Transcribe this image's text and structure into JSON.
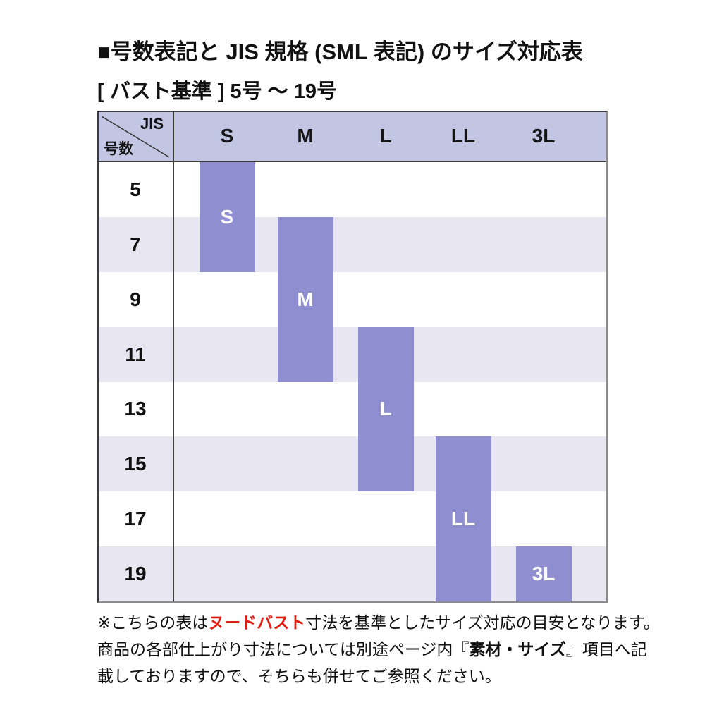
{
  "title": "■号数表記と JIS 規格 (SML 表記) のサイズ対応表",
  "subtitle": "[ バスト基準 ] 5号 〜 19号",
  "table": {
    "corner": {
      "jis": "JIS",
      "gosu": "号数"
    },
    "columns": [
      "S",
      "M",
      "L",
      "LL",
      "3L"
    ],
    "rows": [
      "5",
      "7",
      "9",
      "11",
      "13",
      "15",
      "17",
      "19"
    ],
    "bars": [
      {
        "size": "S",
        "rows_covered": [
          "5",
          "7"
        ]
      },
      {
        "size": "M",
        "rows_covered": [
          "7",
          "9",
          "11"
        ]
      },
      {
        "size": "L",
        "rows_covered": [
          "11",
          "13",
          "15"
        ]
      },
      {
        "size": "LL",
        "rows_covered": [
          "15",
          "17",
          "19"
        ]
      },
      {
        "size": "3L",
        "rows_covered": [
          "19"
        ]
      }
    ],
    "colors": {
      "header_bg": "#c3c6e3",
      "stripe_bg": "#e8e6f1",
      "bar": "#8f8ed1",
      "bar_text": "#ffffff",
      "border_dark": "#3b3b3b",
      "border_light": "#8b8b8b"
    }
  },
  "footnote": {
    "highlight_color": "#e01f14",
    "lines": [
      {
        "segments": [
          {
            "text": "※こちらの表は",
            "style": "normal"
          },
          {
            "text": "ヌードバスト",
            "style": "red-bold"
          },
          {
            "text": "寸法を基準としたサイズ対応の目安となります。",
            "style": "normal"
          }
        ]
      },
      {
        "segments": [
          {
            "text": "商品の各部仕上がり寸法については別途ページ内『",
            "style": "normal"
          },
          {
            "text": "素材・サイズ",
            "style": "bold"
          },
          {
            "text": "』項目へ記",
            "style": "normal"
          }
        ]
      },
      {
        "segments": [
          {
            "text": "載しておりますので、そちらも併せてご参照ください。",
            "style": "normal"
          }
        ]
      }
    ]
  },
  "chart_data": {
    "type": "table",
    "title": "号数表記と JIS 規格 (SML 表記) のサイズ対応表",
    "subtitle": "バスト基準 5号〜19号",
    "rows_axis_label": "号数",
    "columns_axis_label": "JIS",
    "categories": [
      "5",
      "7",
      "9",
      "11",
      "13",
      "15",
      "17",
      "19"
    ],
    "columns": [
      "S",
      "M",
      "L",
      "LL",
      "3L"
    ],
    "series": [
      {
        "name": "S",
        "rows": [
          "5",
          "7"
        ]
      },
      {
        "name": "M",
        "rows": [
          "7",
          "9",
          "11"
        ]
      },
      {
        "name": "L",
        "rows": [
          "11",
          "13",
          "15"
        ]
      },
      {
        "name": "LL",
        "rows": [
          "15",
          "17",
          "19"
        ]
      },
      {
        "name": "3L",
        "rows": [
          "19"
        ]
      }
    ]
  }
}
